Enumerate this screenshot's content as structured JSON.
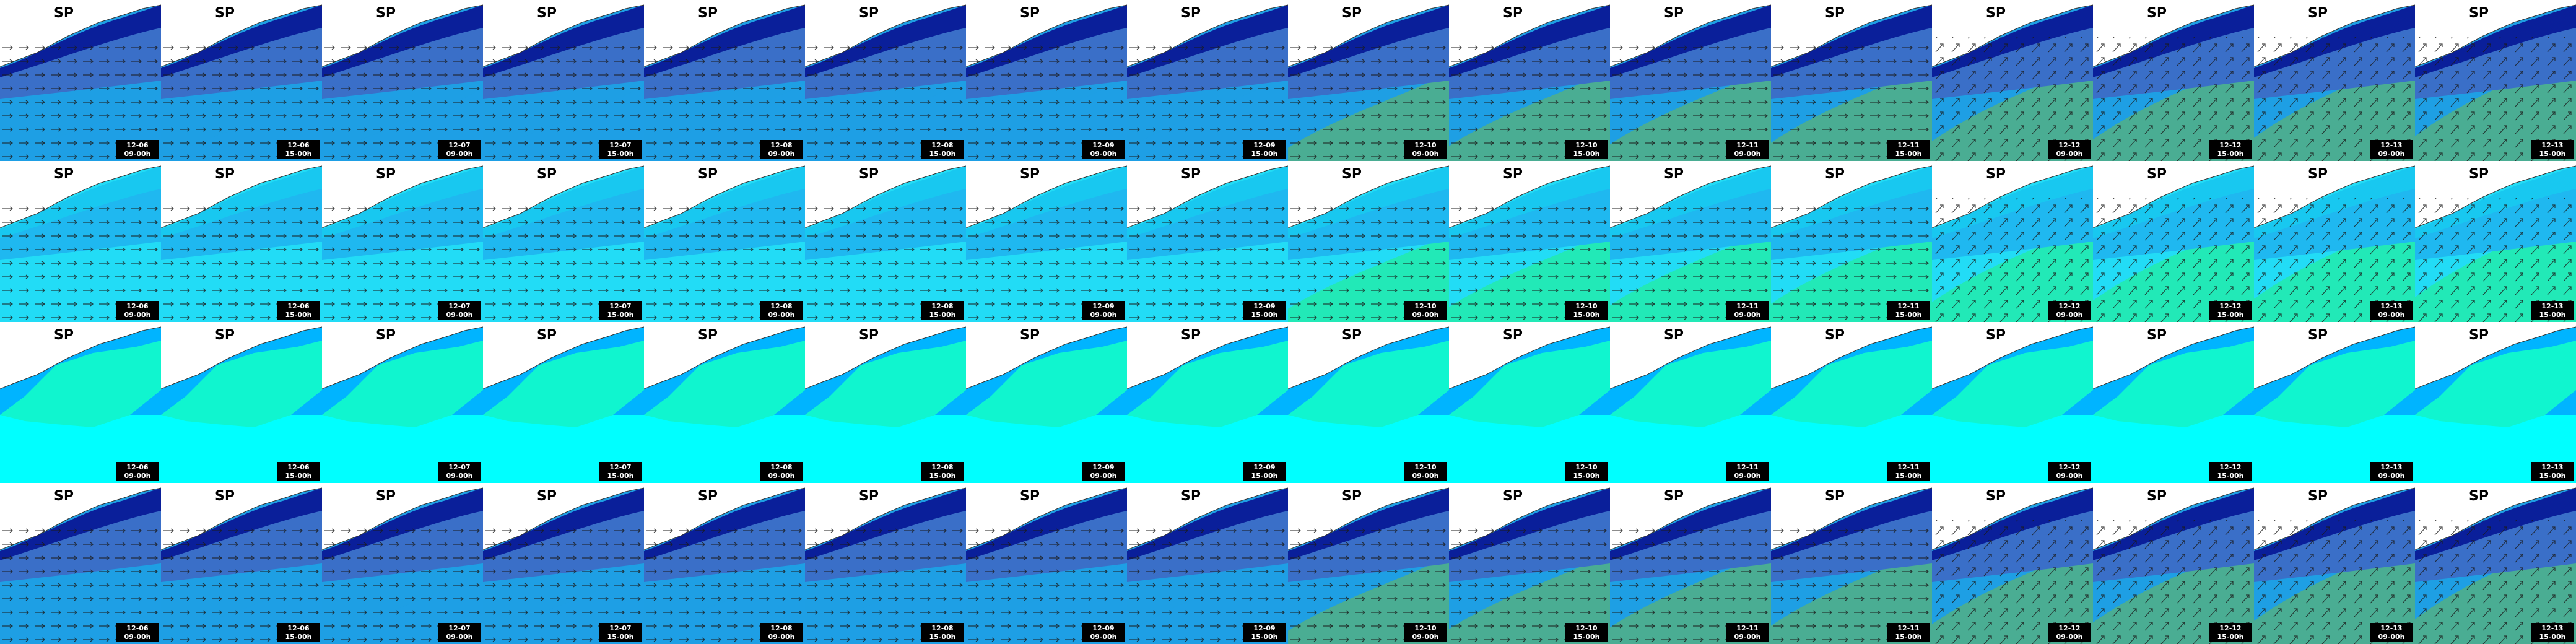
{
  "title": "SP",
  "columns": [
    {
      "date": "12-06",
      "time": "09-00h"
    },
    {
      "date": "12-06",
      "time": "15-00h"
    },
    {
      "date": "12-07",
      "time": "09-00h"
    },
    {
      "date": "12-07",
      "time": "15-00h"
    },
    {
      "date": "12-08",
      "time": "09-00h"
    },
    {
      "date": "12-08",
      "time": "15-00h"
    },
    {
      "date": "12-09",
      "time": "09-00h"
    },
    {
      "date": "12-09",
      "time": "15-00h"
    },
    {
      "date": "12-10",
      "time": "09-00h"
    },
    {
      "date": "12-10",
      "time": "15-00h"
    },
    {
      "date": "12-11",
      "time": "09-00h"
    },
    {
      "date": "12-11",
      "time": "15-00h"
    },
    {
      "date": "12-12",
      "time": "09-00h"
    },
    {
      "date": "12-12",
      "time": "15-00h"
    },
    {
      "date": "12-13",
      "time": "09-00h"
    },
    {
      "date": "12-13",
      "time": "15-00h"
    }
  ]
}
